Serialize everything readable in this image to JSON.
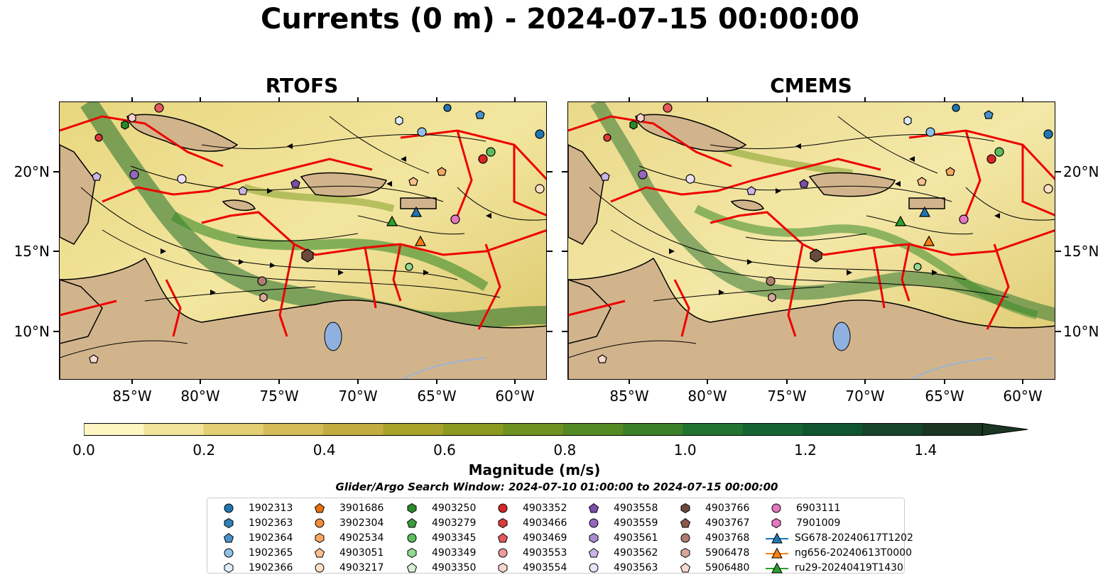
{
  "title": "Currents (0 m) - 2024-07-15 00:00:00",
  "panels": [
    {
      "title": "RTOFS"
    },
    {
      "title": "CMEMS"
    }
  ],
  "x_ticks": [
    "85°W",
    "80°W",
    "75°W",
    "70°W",
    "65°W",
    "60°W"
  ],
  "y_ticks": [
    "20°N",
    "15°N",
    "10°N"
  ],
  "colorbar": {
    "label": "Magnitude (m/s)",
    "ticks": [
      "0.0",
      "0.2",
      "0.4",
      "0.6",
      "0.8",
      "1.0",
      "1.2",
      "1.4"
    ],
    "range": [
      0.0,
      1.5
    ],
    "step": 0.1,
    "extend": "max",
    "colors": [
      "#fdf6c3",
      "#f2e39a",
      "#e3cf74",
      "#d4bb58",
      "#c3ac3f",
      "#a9a22a",
      "#8b9a1e",
      "#6f9120",
      "#548a24",
      "#3a8028",
      "#22732f",
      "#136432",
      "#0f5530",
      "#16442a",
      "#1a3522"
    ]
  },
  "search_window": "Glider/Argo Search Window: 2024-07-10 01:00:00 to 2024-07-15 00:00:00",
  "legend": [
    [
      {
        "label": "1902313",
        "marker": "circle",
        "color": "#1f77b4"
      },
      {
        "label": "1902363",
        "marker": "hexagon",
        "color": "#2f7fb8"
      },
      {
        "label": "1902364",
        "marker": "pentagon",
        "color": "#4a91c9"
      },
      {
        "label": "1902365",
        "marker": "circle",
        "color": "#8fc1e6"
      },
      {
        "label": "1902366",
        "marker": "hexagon",
        "color": "#ddeefa"
      }
    ],
    [
      {
        "label": "3901686",
        "marker": "pentagon",
        "color": "#e6700f"
      },
      {
        "label": "3902304",
        "marker": "circle",
        "color": "#f28c38"
      },
      {
        "label": "4902534",
        "marker": "hexagon",
        "color": "#f7a660"
      },
      {
        "label": "4903051",
        "marker": "pentagon",
        "color": "#fbc08c"
      },
      {
        "label": "4903217",
        "marker": "circle",
        "color": "#fde0c2"
      }
    ],
    [
      {
        "label": "4903250",
        "marker": "hexagon",
        "color": "#2a8a2a"
      },
      {
        "label": "4903279",
        "marker": "pentagon",
        "color": "#3a9c3a"
      },
      {
        "label": "4903345",
        "marker": "circle",
        "color": "#5cbd5c"
      },
      {
        "label": "4903349",
        "marker": "hexagon",
        "color": "#92d992"
      },
      {
        "label": "4903350",
        "marker": "pentagon",
        "color": "#d5f2d0"
      }
    ],
    [
      {
        "label": "4903352",
        "marker": "circle",
        "color": "#d62728"
      },
      {
        "label": "4903466",
        "marker": "hexagon",
        "color": "#dc3a3e"
      },
      {
        "label": "4903469",
        "marker": "pentagon",
        "color": "#e2595b"
      },
      {
        "label": "4903553",
        "marker": "circle",
        "color": "#ec9a98"
      },
      {
        "label": "4903554",
        "marker": "hexagon",
        "color": "#f7d3d0"
      }
    ],
    [
      {
        "label": "4903558",
        "marker": "pentagon",
        "color": "#7b4ea8"
      },
      {
        "label": "4903559",
        "marker": "circle",
        "color": "#9467bd"
      },
      {
        "label": "4903561",
        "marker": "hexagon",
        "color": "#a98bcf"
      },
      {
        "label": "4903562",
        "marker": "pentagon",
        "color": "#cbb5e6"
      },
      {
        "label": "4903563",
        "marker": "circle",
        "color": "#ecdff8"
      }
    ],
    [
      {
        "label": "4903766",
        "marker": "hexagon",
        "color": "#6b4a3e"
      },
      {
        "label": "4903767",
        "marker": "pentagon",
        "color": "#8c564b"
      },
      {
        "label": "4903768",
        "marker": "circle",
        "color": "#b07c6f"
      },
      {
        "label": "5906478",
        "marker": "hexagon",
        "color": "#d6a89a"
      },
      {
        "label": "5906480",
        "marker": "pentagon",
        "color": "#f5d9cf"
      }
    ],
    [
      {
        "label": "6903111",
        "marker": "circle",
        "color": "#e377c2"
      },
      {
        "label": "7901009",
        "marker": "hexagon",
        "color": "#e377c2"
      },
      {
        "label": "SG678-20240617T1202",
        "marker": "triangle-line",
        "color": "#1f77b4"
      },
      {
        "label": "ng656-20240613T0000",
        "marker": "triangle-line",
        "color": "#ff7f0e"
      },
      {
        "label": "ru29-20240419T1430",
        "marker": "triangle-line",
        "color": "#2ca02c"
      }
    ]
  ]
}
